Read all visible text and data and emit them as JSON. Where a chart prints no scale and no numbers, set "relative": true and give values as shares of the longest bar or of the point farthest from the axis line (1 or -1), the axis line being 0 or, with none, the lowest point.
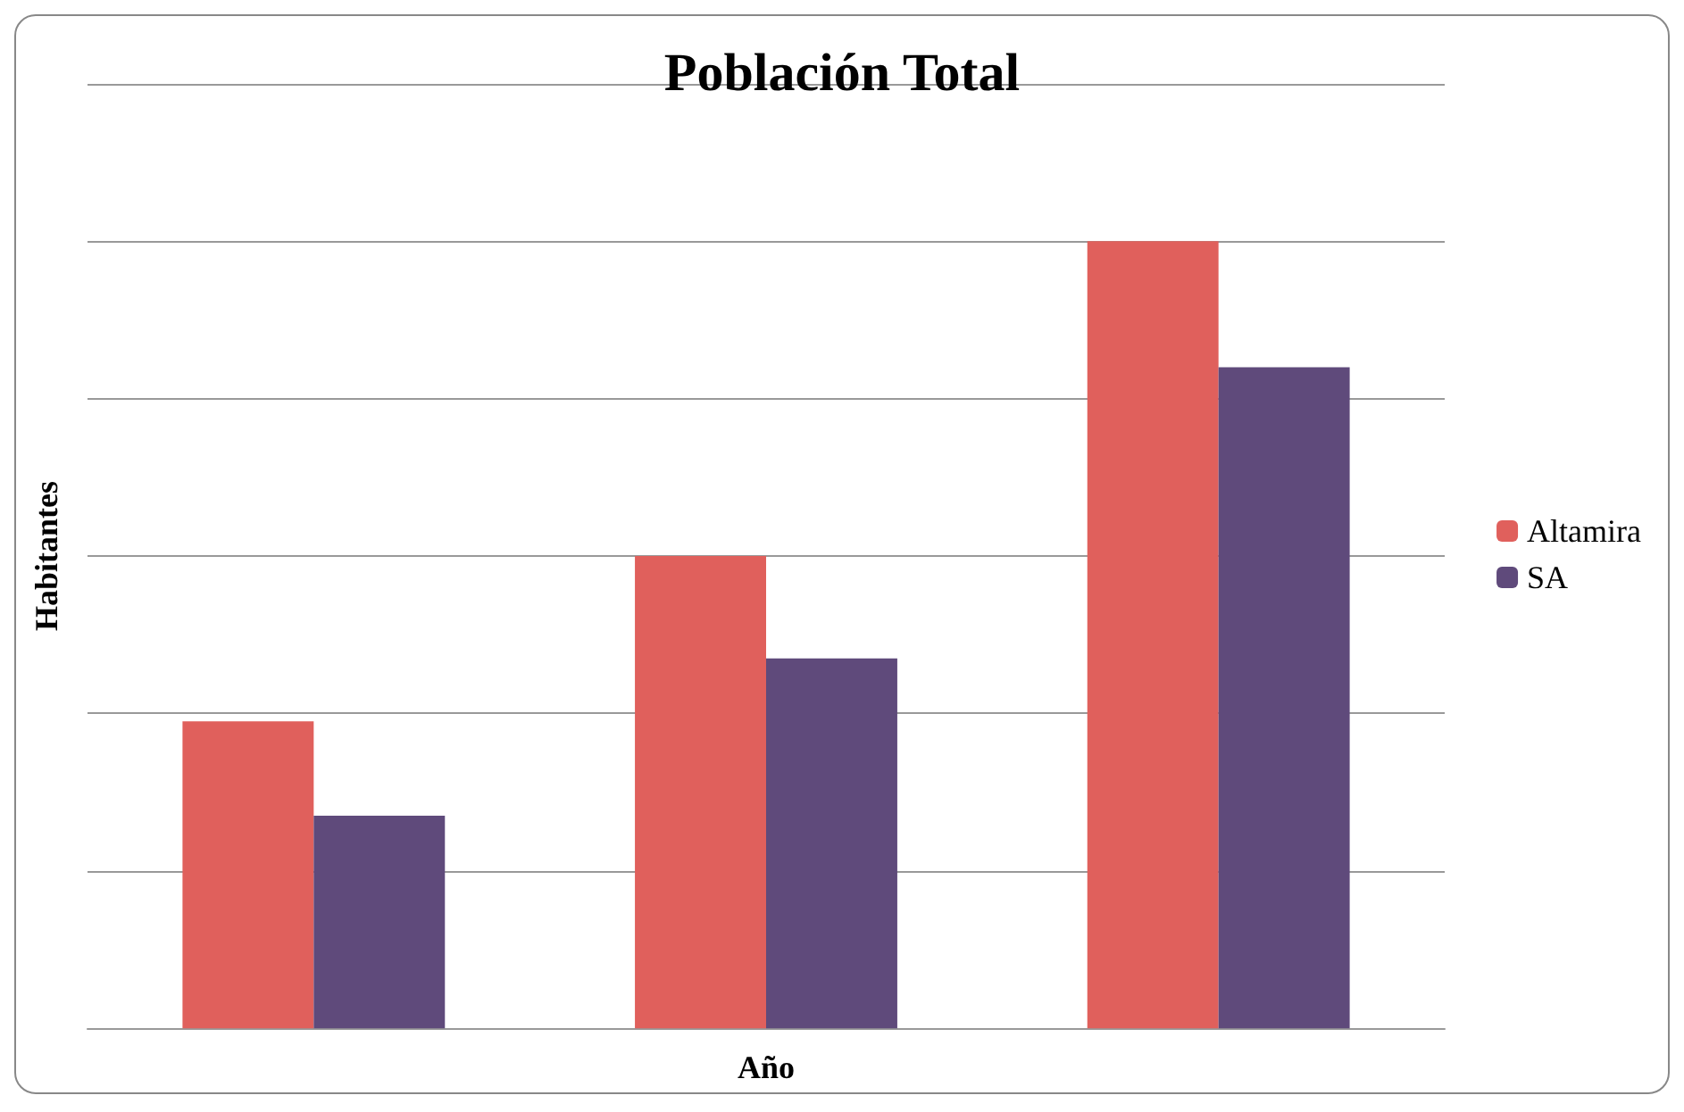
{
  "chart_data": {
    "type": "bar",
    "title": "Población Total",
    "xlabel": "Año",
    "ylabel": "Habitantes",
    "relative": true,
    "categories": [
      null,
      null,
      null
    ],
    "series": [
      {
        "name": "Altamira",
        "color": "#e0605c",
        "values": [
          0.39,
          0.6,
          1
        ]
      },
      {
        "name": "SA",
        "color": "#5f4a7b",
        "values": [
          0.27,
          0.47,
          0.84
        ]
      }
    ],
    "grid": "y",
    "legend": "right"
  }
}
